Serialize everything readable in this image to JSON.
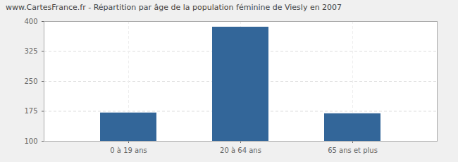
{
  "chart_data": {
    "type": "bar",
    "title": "www.CartesFrance.fr - Répartition par âge de la population féminine de Viesly en 2007",
    "categories": [
      "0 à 19 ans",
      "20 à 64 ans",
      "65 ans et plus"
    ],
    "values": [
      171,
      386,
      169
    ],
    "color": "#336699",
    "ylim": [
      100,
      400
    ],
    "yticks": [
      100,
      175,
      250,
      325,
      400
    ],
    "grid": true
  }
}
